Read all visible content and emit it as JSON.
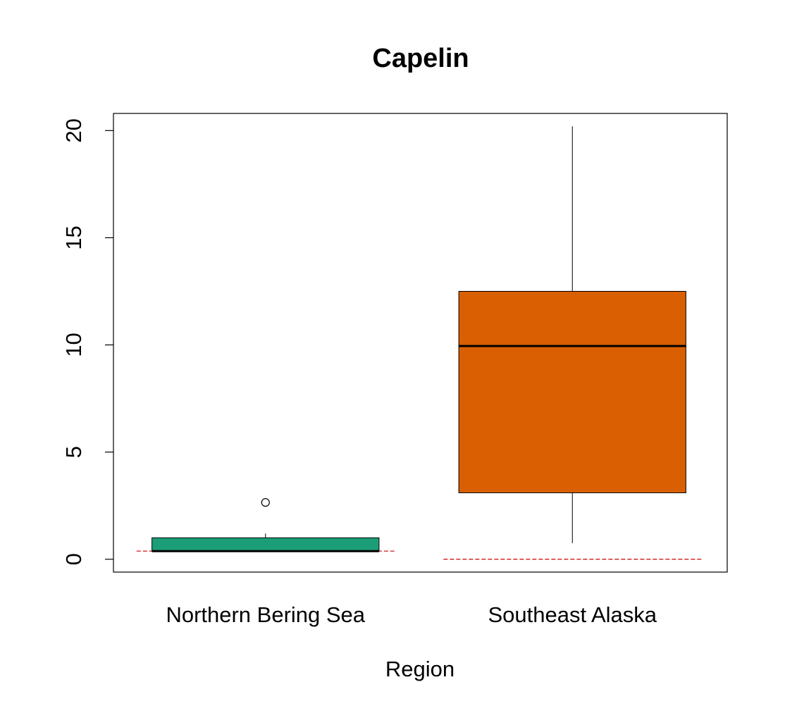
{
  "chart_data": {
    "type": "box",
    "title": "Capelin",
    "xlabel": "Region",
    "ylabel": "",
    "ylim": [
      -0.6,
      20.8
    ],
    "yticks": [
      0,
      5,
      10,
      15,
      20
    ],
    "ytick_labels": [
      "0",
      "5",
      "10",
      "15",
      "20"
    ],
    "categories": [
      "Northern Bering Sea",
      "Southeast Alaska"
    ],
    "boxes": [
      {
        "category": "Northern Bering Sea",
        "whisker_low": 0.38,
        "q1": 0.38,
        "median": 0.38,
        "q3": 1.0,
        "whisker_high": 1.2,
        "outliers": [
          2.65
        ],
        "reference_line": 0.38,
        "color": "#1B9E77"
      },
      {
        "category": "Southeast Alaska",
        "whisker_low": 0.75,
        "q1": 3.1,
        "median": 9.95,
        "q3": 12.5,
        "whisker_high": 20.2,
        "outliers": [],
        "reference_line": 0.0,
        "color": "#D95F02"
      }
    ],
    "grid": false,
    "legend": "none",
    "colors": {
      "reference_line": "#CC0000",
      "median": "#000000",
      "frame": "#000000"
    }
  }
}
